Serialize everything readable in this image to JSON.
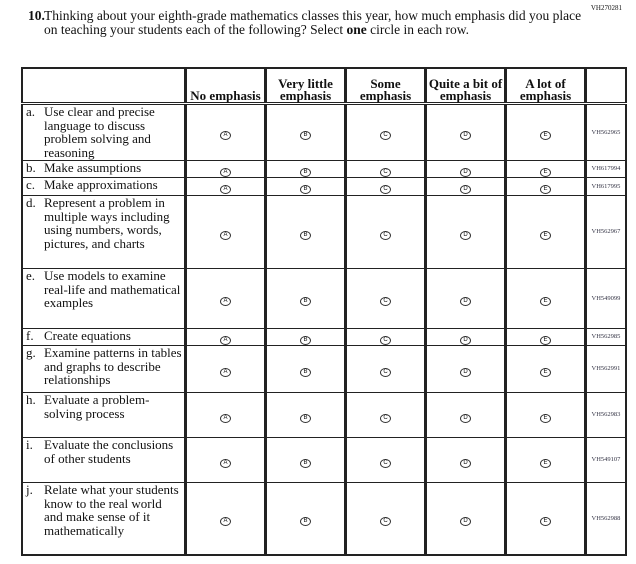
{
  "question_id": "VH270281",
  "question": {
    "number": "10.",
    "text_before": "Thinking about your eighth-grade mathematics classes this year, how much emphasis did you place on teaching your students each of the following? Select ",
    "text_bold": "one",
    "text_after": " circle in each row."
  },
  "columns": [
    "No emphasis",
    "Very little emphasis",
    "Some emphasis",
    "Quite a bit of emphasis",
    "A lot of emphasis"
  ],
  "bubble_letters": [
    "A",
    "B",
    "C",
    "D",
    "E"
  ],
  "rows": [
    {
      "letter": "a.",
      "text": "Use clear and precise language to discuss problem solving and reasoning",
      "code": "VH562965",
      "h": 57
    },
    {
      "letter": "b.",
      "text": "Make assumptions",
      "code": "VH617994",
      "h": 17
    },
    {
      "letter": "c.",
      "text": "Make approximations",
      "code": "VH617995",
      "h": 18
    },
    {
      "letter": "d.",
      "text": "Represent a problem in multiple ways including using numbers, words, pictures, and charts",
      "code": "VH562967",
      "h": 73
    },
    {
      "letter": "e.",
      "text": "Use models to examine real-life and mathematical examples",
      "code": "VH549099",
      "h": 60
    },
    {
      "letter": "f.",
      "text": "Create equations",
      "code": "VH562985",
      "h": 17
    },
    {
      "letter": "g.",
      "text": "Examine patterns in tables and graphs to describe relationships",
      "code": "VH562991",
      "h": 47
    },
    {
      "letter": "h.",
      "text": "Evaluate a problem-solving process",
      "code": "VH562983",
      "h": 45
    },
    {
      "letter": "i.",
      "text": "Evaluate the conclusions of other students",
      "code": "VH549107",
      "h": 45
    },
    {
      "letter": "j.",
      "text": "Relate what your students know to the real world and make sense of it mathematically",
      "code": "VH562988",
      "h": 72
    }
  ]
}
